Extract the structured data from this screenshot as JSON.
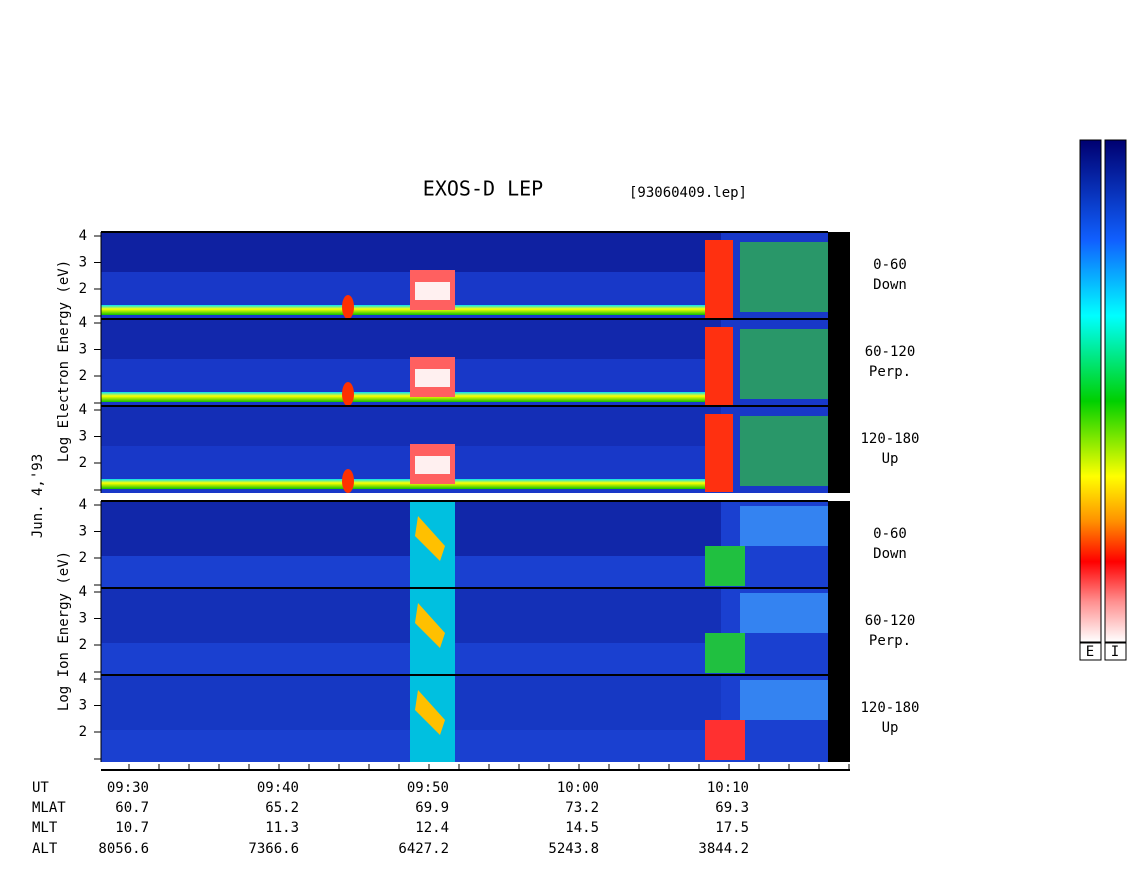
{
  "title": "EXOS-D LEP",
  "file": "[93060409.lep]",
  "date": "Jun. 4,'93",
  "electron_axis_label": "Log Electron Energy (eV)",
  "ion_axis_label": "Log Ion Energy (eV)",
  "yticks": [
    2,
    3,
    4
  ],
  "electron_panels": [
    {
      "range": "0-60",
      "direction": "Down"
    },
    {
      "range": "60-120",
      "direction": "Perp."
    },
    {
      "range": "120-180",
      "direction": "Up"
    }
  ],
  "ion_panels": [
    {
      "range": "0-60",
      "direction": "Down"
    },
    {
      "range": "60-120",
      "direction": "Perp."
    },
    {
      "range": "120-180",
      "direction": "Up"
    }
  ],
  "time_axis": {
    "rows": [
      {
        "name": "UT",
        "values": [
          "09:30",
          "09:40",
          "09:50",
          "10:00",
          "10:10"
        ]
      },
      {
        "name": "MLAT",
        "values": [
          60.7,
          65.2,
          69.9,
          73.2,
          69.3
        ]
      },
      {
        "name": "MLT",
        "values": [
          10.7,
          11.3,
          12.4,
          14.5,
          17.5
        ]
      },
      {
        "name": "ALT",
        "values": [
          8056.6,
          7366.6,
          6427.2,
          5243.8,
          3844.2
        ]
      }
    ]
  },
  "colorbar_labels": [
    "E",
    "I"
  ]
}
